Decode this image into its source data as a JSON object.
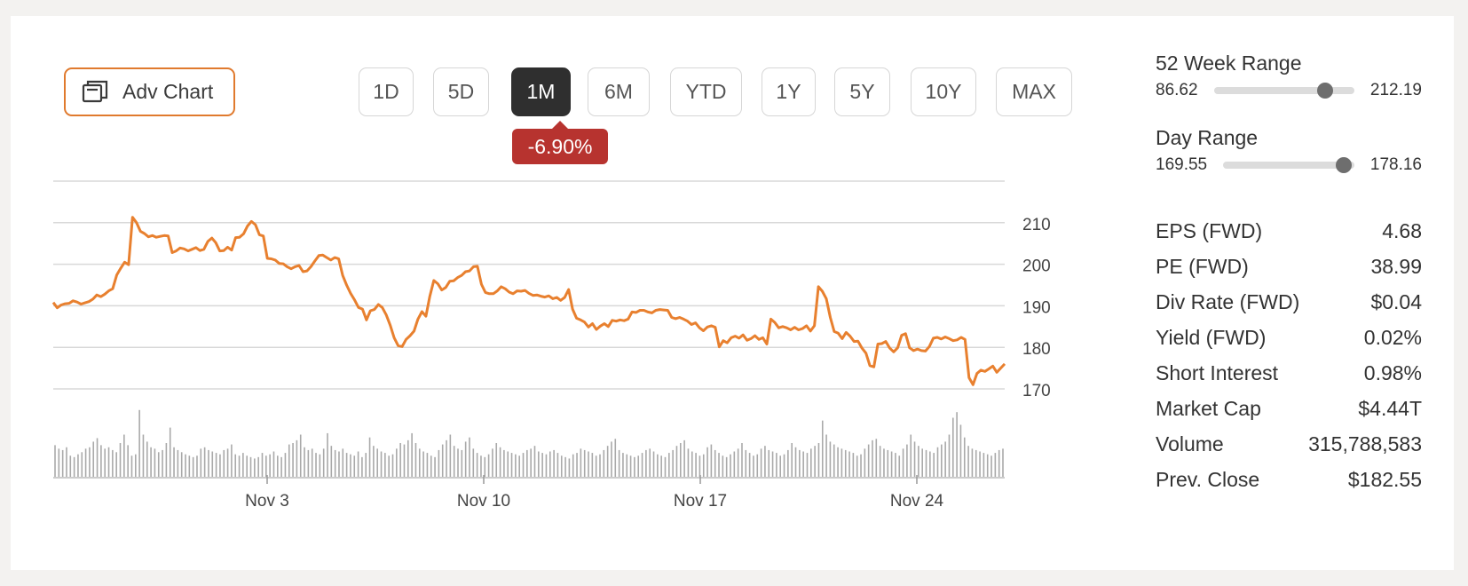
{
  "toolbar": {
    "adv_chart_label": "Adv Chart",
    "ranges": [
      "1D",
      "5D",
      "1M",
      "6M",
      "YTD",
      "1Y",
      "5Y",
      "10Y",
      "MAX"
    ],
    "active_range": "1M",
    "change": "-6.90%",
    "change_color": "#b7332f",
    "accent_color": "#e07a2e"
  },
  "chart_data": {
    "type": "line",
    "title": "",
    "xlabel": "",
    "ylabel": "",
    "x_ticks": [
      "Nov 3",
      "Nov 10",
      "Nov 17",
      "Nov 24"
    ],
    "y_ticks": [
      170,
      180,
      190,
      200,
      210
    ],
    "ylim": [
      170,
      220
    ],
    "axis_side": "right",
    "grid": true,
    "series_color": "#e8802f",
    "price": [
      190.8,
      189.5,
      190.2,
      190.5,
      190.6,
      191.2,
      190.9,
      190.4,
      190.7,
      191.0,
      191.6,
      192.6,
      192.2,
      192.8,
      193.6,
      194.1,
      197.4,
      199.0,
      200.5,
      199.9,
      211.3,
      210.0,
      207.9,
      207.4,
      206.6,
      206.9,
      206.5,
      206.7,
      206.9,
      206.8,
      202.8,
      203.2,
      203.9,
      203.7,
      203.2,
      203.6,
      204.0,
      203.3,
      203.6,
      205.5,
      206.3,
      205.2,
      203.2,
      203.3,
      204.1,
      203.4,
      206.4,
      206.5,
      207.3,
      209.2,
      210.3,
      209.5,
      207.1,
      206.8,
      201.4,
      201.3,
      201.0,
      200.2,
      200.1,
      199.4,
      198.9,
      199.4,
      199.7,
      198.2,
      198.4,
      199.4,
      200.8,
      202.1,
      202.2,
      201.6,
      201.0,
      201.6,
      201.3,
      197.3,
      195.0,
      193.0,
      191.4,
      189.6,
      189.2,
      186.6,
      188.8,
      189.1,
      190.3,
      189.6,
      187.8,
      185.3,
      182.3,
      180.4,
      180.2,
      181.9,
      182.8,
      183.9,
      186.8,
      188.6,
      187.5,
      192.3,
      196.1,
      195.3,
      193.8,
      194.4,
      195.9,
      196.0,
      196.8,
      197.3,
      198.2,
      198.4,
      199.4,
      199.5,
      195.2,
      193.2,
      192.9,
      192.9,
      193.6,
      194.6,
      194.1,
      193.3,
      192.9,
      193.6,
      193.5,
      193.7,
      193.0,
      192.5,
      192.6,
      192.3,
      192.1,
      192.4,
      191.7,
      192.0,
      191.3,
      192.0,
      193.9,
      189.2,
      187.0,
      186.6,
      186.1,
      184.9,
      185.7,
      184.3,
      185.1,
      185.7,
      185.0,
      186.5,
      186.3,
      186.6,
      186.4,
      186.8,
      188.5,
      188.4,
      188.9,
      188.9,
      188.5,
      188.3,
      188.9,
      189.1,
      189.0,
      188.9,
      187.2,
      186.9,
      187.2,
      186.8,
      186.3,
      185.5,
      185.9,
      184.7,
      184.0,
      184.9,
      185.2,
      184.8,
      180.1,
      181.6,
      181.1,
      182.3,
      182.7,
      182.2,
      183.0,
      181.7,
      182.1,
      182.8,
      181.9,
      182.3,
      180.8,
      186.8,
      186.0,
      184.7,
      185.0,
      184.7,
      184.2,
      184.8,
      184.2,
      184.5,
      185.2,
      183.9,
      185.2,
      194.6,
      193.5,
      191.7,
      187.2,
      183.8,
      183.4,
      182.1,
      183.6,
      182.7,
      181.4,
      181.5,
      179.8,
      178.6,
      175.6,
      175.3,
      180.8,
      180.9,
      181.4,
      179.8,
      178.9,
      179.9,
      182.9,
      183.3,
      179.9,
      179.2,
      179.6,
      179.2,
      179.1,
      180.2,
      182.2,
      182.4,
      182.0,
      182.5,
      182.1,
      181.6,
      181.8,
      182.4,
      181.9,
      172.7,
      171.0,
      173.7,
      174.5,
      174.2,
      174.8,
      175.5,
      174.0,
      175.0,
      176.0
    ],
    "volume": [
      45,
      40,
      38,
      42,
      30,
      28,
      32,
      35,
      40,
      42,
      50,
      55,
      45,
      40,
      42,
      38,
      35,
      48,
      60,
      45,
      30,
      32,
      95,
      60,
      50,
      42,
      40,
      35,
      38,
      48,
      70,
      42,
      38,
      35,
      32,
      30,
      28,
      30,
      40,
      42,
      38,
      36,
      34,
      32,
      38,
      40,
      46,
      32,
      30,
      34,
      30,
      28,
      26,
      28,
      34,
      30,
      32,
      36,
      30,
      28,
      34,
      46,
      48,
      52,
      60,
      42,
      38,
      40,
      34,
      32,
      40,
      62,
      44,
      38,
      36,
      40,
      34,
      32,
      30,
      36,
      28,
      34,
      56,
      44,
      40,
      36,
      34,
      30,
      32,
      40,
      48,
      46,
      52,
      62,
      48,
      40,
      36,
      34,
      30,
      28,
      38,
      46,
      52,
      60,
      44,
      40,
      38,
      50,
      56,
      40,
      34,
      30,
      28,
      32,
      40,
      48,
      42,
      38,
      36,
      34,
      32,
      30,
      34,
      38,
      40,
      44,
      36,
      34,
      32,
      36,
      38,
      34,
      30,
      28,
      26,
      32,
      34,
      40,
      38,
      36,
      34,
      30,
      32,
      38,
      44,
      50,
      54,
      38,
      34,
      32,
      30,
      28,
      30,
      34,
      38,
      40,
      36,
      32,
      30,
      28,
      34,
      38,
      44,
      48,
      52,
      40,
      36,
      34,
      30,
      32,
      42,
      46,
      38,
      34,
      30,
      28,
      32,
      36,
      40,
      48,
      38,
      34,
      30,
      32,
      40,
      44,
      38,
      36,
      34,
      30,
      32,
      38,
      48,
      42,
      38,
      36,
      34,
      40,
      44,
      48,
      80,
      60,
      50,
      46,
      42,
      40,
      38,
      36,
      34,
      30,
      32,
      40,
      46,
      52,
      54,
      44,
      40,
      38,
      36,
      34,
      30,
      40,
      46,
      60,
      50,
      44,
      40,
      38,
      36,
      34,
      42,
      46,
      50,
      60,
      84,
      92,
      74,
      56,
      44,
      40,
      38,
      36,
      34,
      32,
      30,
      34,
      38,
      40
    ]
  },
  "ranges_info": {
    "week52": {
      "title": "52 Week Range",
      "low": "86.62",
      "high": "212.19",
      "position": 0.79
    },
    "day": {
      "title": "Day Range",
      "low": "169.55",
      "high": "178.16",
      "position": 0.92
    }
  },
  "stats": [
    {
      "label": "EPS (FWD)",
      "value": "4.68"
    },
    {
      "label": "PE (FWD)",
      "value": "38.99"
    },
    {
      "label": "Div Rate (FWD)",
      "value": "$0.04"
    },
    {
      "label": "Yield (FWD)",
      "value": "0.02%"
    },
    {
      "label": "Short Interest",
      "value": "0.98%"
    },
    {
      "label": "Market Cap",
      "value": "$4.44T"
    },
    {
      "label": "Volume",
      "value": "315,788,583"
    },
    {
      "label": "Prev. Close",
      "value": "$182.55"
    }
  ]
}
